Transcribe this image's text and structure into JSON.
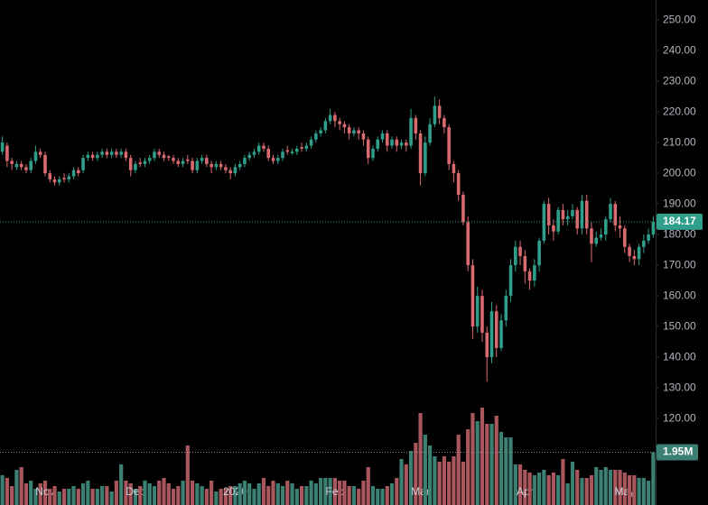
{
  "chart_data": {
    "type": "candlestick",
    "categories": [
      null,
      null,
      null,
      null,
      null,
      null,
      null,
      null,
      null,
      "Nov",
      null,
      null,
      null,
      null,
      null,
      null,
      null,
      null,
      null,
      null,
      null,
      null,
      null,
      null,
      null,
      null,
      null,
      null,
      "Dec",
      null,
      null,
      null,
      null,
      null,
      null,
      null,
      null,
      null,
      null,
      null,
      null,
      null,
      null,
      null,
      null,
      null,
      null,
      null,
      null,
      "2020",
      null,
      null,
      null,
      null,
      null,
      null,
      null,
      null,
      null,
      null,
      null,
      null,
      null,
      null,
      null,
      null,
      null,
      null,
      null,
      null,
      "Feb",
      null,
      null,
      null,
      null,
      null,
      null,
      null,
      null,
      null,
      null,
      null,
      null,
      null,
      null,
      null,
      null,
      null,
      "Mar",
      null,
      null,
      null,
      null,
      null,
      null,
      null,
      null,
      null,
      null,
      null,
      null,
      null,
      null,
      null,
      null,
      null,
      null,
      null,
      null,
      null,
      "Apr",
      null,
      null,
      null,
      null,
      null,
      null,
      null,
      null,
      null,
      null,
      null,
      null,
      null,
      null,
      null,
      null,
      null,
      null,
      null,
      null,
      "May",
      null,
      null,
      null,
      null,
      null,
      null
    ],
    "open": [
      207,
      209,
      204,
      202,
      203,
      202,
      201,
      204,
      207,
      206,
      200,
      198,
      197,
      198.5,
      198,
      199,
      201,
      201,
      205,
      206,
      205,
      206,
      207,
      206,
      207,
      206,
      207,
      205,
      201,
      203.5,
      203,
      204,
      205,
      207,
      206,
      205.5,
      205,
      204,
      203,
      204.5,
      204,
      201,
      204,
      205,
      203,
      202,
      203,
      202,
      201,
      200,
      202,
      203,
      205,
      206,
      207,
      209,
      208,
      205,
      204,
      205,
      207.5,
      206.5,
      207,
      208.5,
      208,
      209,
      211,
      213,
      214,
      217,
      219,
      217,
      216,
      215,
      213,
      214,
      213,
      211,
      205,
      208,
      211,
      213,
      209,
      211,
      209,
      210,
      209,
      218,
      213,
      200,
      210,
      216,
      222,
      218,
      215,
      203,
      200,
      193,
      184,
      170,
      150,
      160,
      148,
      140,
      155,
      143,
      152,
      160,
      170,
      176,
      173,
      168,
      165,
      170,
      178,
      190,
      183,
      181,
      188,
      185,
      186,
      188,
      182,
      191,
      182,
      177,
      179,
      180,
      185,
      190,
      183,
      182,
      176,
      173,
      172,
      176,
      178,
      180
    ],
    "high": [
      212,
      210,
      205,
      204,
      204,
      203,
      205,
      209,
      208,
      207,
      201,
      199,
      199,
      200,
      200,
      202,
      202,
      206,
      207,
      207,
      207,
      208,
      208,
      208,
      208,
      208,
      208,
      206,
      204,
      205,
      205,
      206,
      208,
      208,
      207,
      206,
      206,
      205,
      205,
      206,
      205,
      205,
      206,
      206,
      204,
      204,
      204,
      203,
      202,
      203,
      204,
      206,
      207,
      208,
      210,
      210,
      209,
      206,
      206,
      208,
      209,
      208,
      209,
      210,
      210,
      212,
      214,
      215,
      218,
      221,
      220,
      218,
      217,
      216,
      215,
      215,
      214,
      212,
      209,
      212,
      214,
      214,
      212,
      212,
      211,
      211,
      221,
      219,
      214,
      212,
      218,
      225,
      224,
      219,
      216,
      204,
      201,
      194,
      186,
      172,
      163,
      162,
      150,
      158,
      157,
      154,
      162,
      172,
      178,
      178,
      175,
      169,
      172,
      179,
      191,
      192,
      185,
      189,
      190,
      188,
      190,
      189,
      193,
      193,
      184,
      181,
      182,
      186,
      192,
      191,
      186,
      183,
      177,
      175,
      177,
      180,
      182,
      186
    ],
    "low": [
      206,
      202,
      201,
      201,
      201,
      200,
      200,
      203,
      205,
      199,
      197,
      196,
      196,
      197,
      197,
      198,
      199,
      200,
      204,
      204,
      204,
      205,
      205,
      205,
      205,
      205,
      204,
      199,
      200,
      202,
      202,
      203,
      204,
      205,
      204,
      204,
      203,
      202,
      202,
      203,
      200,
      200,
      203,
      202,
      200,
      201,
      201,
      200,
      198,
      199,
      201,
      202,
      204,
      205,
      206,
      207,
      204,
      203,
      203,
      204,
      206,
      206,
      206,
      207,
      207,
      208,
      210,
      212,
      213,
      216,
      215,
      214,
      213,
      211,
      212,
      211,
      209,
      203,
      204,
      207,
      210,
      207,
      208,
      207,
      208,
      207,
      208,
      211,
      196,
      199,
      209,
      215,
      216,
      213,
      201,
      197,
      191,
      183,
      168,
      146,
      148,
      145,
      132,
      138,
      140,
      142,
      150,
      158,
      168,
      170,
      164,
      162,
      163,
      168,
      177,
      180,
      178,
      180,
      183,
      183,
      185,
      180,
      180,
      180,
      171,
      176,
      178,
      178,
      184,
      181,
      179,
      174,
      171,
      170,
      170,
      174,
      177,
      179
    ],
    "close": [
      210,
      204,
      203,
      203,
      202,
      201,
      204,
      207,
      206,
      200,
      198,
      197,
      198,
      198,
      199,
      201,
      200,
      205,
      206,
      205,
      206,
      207,
      206,
      207,
      206,
      207,
      205,
      201,
      203,
      203,
      204,
      205,
      207,
      206,
      205,
      205,
      204,
      203,
      204,
      204,
      201,
      204,
      205,
      203,
      202,
      203,
      202,
      201,
      200,
      202,
      203,
      205,
      206,
      207,
      209,
      208,
      205,
      204,
      205,
      207,
      207,
      207,
      208,
      208,
      209,
      211,
      213,
      214,
      217,
      219,
      217,
      216,
      215,
      213,
      214,
      213,
      211,
      205,
      208,
      211,
      213,
      209,
      211,
      209,
      210,
      209,
      218,
      213,
      200,
      210,
      216,
      222,
      218,
      215,
      203,
      200,
      193,
      184,
      170,
      150,
      160,
      148,
      140,
      155,
      143,
      152,
      160,
      170,
      176,
      173,
      168,
      165,
      170,
      178,
      190,
      183,
      181,
      188,
      185,
      186,
      188,
      182,
      191,
      182,
      177,
      179,
      180,
      185,
      190,
      183,
      182,
      176,
      173,
      172,
      176,
      178,
      180,
      184.17
    ],
    "volume": [
      1.1,
      1.0,
      0.7,
      1.3,
      1.4,
      0.8,
      0.9,
      0.6,
      0.8,
      0.9,
      0.6,
      0.7,
      0.5,
      0.6,
      0.6,
      0.7,
      0.6,
      0.8,
      0.9,
      0.6,
      0.6,
      0.7,
      0.7,
      0.5,
      0.9,
      1.5,
      0.9,
      0.8,
      0.6,
      0.7,
      0.9,
      0.8,
      0.7,
      0.9,
      1.0,
      0.8,
      0.6,
      0.7,
      0.9,
      2.2,
      0.9,
      0.8,
      0.7,
      0.6,
      0.9,
      0.5,
      0.6,
      0.6,
      0.7,
      0.7,
      0.8,
      0.9,
      0.8,
      0.6,
      0.8,
      1.0,
      0.7,
      0.9,
      0.8,
      0.7,
      0.9,
      0.8,
      0.6,
      0.7,
      0.7,
      0.9,
      0.8,
      1.0,
      1.0,
      1.0,
      1.0,
      0.9,
      0.9,
      0.7,
      0.7,
      0.6,
      0.9,
      1.4,
      0.7,
      0.6,
      0.6,
      0.7,
      0.8,
      1.0,
      1.7,
      1.5,
      2.0,
      2.3,
      3.4,
      2.6,
      2.2,
      1.8,
      1.6,
      1.8,
      1.6,
      1.8,
      2.6,
      1.6,
      2.8,
      3.4,
      3.1,
      3.6,
      3.0,
      3.0,
      3.3,
      2.7,
      2.5,
      2.5,
      1.5,
      1.5,
      1.3,
      1.2,
      1.1,
      1.2,
      1.3,
      1.1,
      1.2,
      1.1,
      1.7,
      0.8,
      1.6,
      1.3,
      1.0,
      1.0,
      1.1,
      1.4,
      1.3,
      1.4,
      1.3,
      1.3,
      1.3,
      1.2,
      1.1,
      1.1,
      1.0,
      1.0,
      0.9,
      1.95
    ],
    "ylim": [
      91.8,
      256.5
    ],
    "yticks": [
      {
        "value": 120,
        "label": "120.00"
      },
      {
        "value": 130,
        "label": "130.00"
      },
      {
        "value": 140,
        "label": "140.00"
      },
      {
        "value": 150,
        "label": "150.00"
      },
      {
        "value": 160,
        "label": "160.00"
      },
      {
        "value": 170,
        "label": "170.00"
      },
      {
        "value": 180,
        "label": "180.00"
      },
      {
        "value": 190,
        "label": "190.00"
      },
      {
        "value": 200,
        "label": "200.00"
      },
      {
        "value": 210,
        "label": "210.00"
      },
      {
        "value": 220,
        "label": "220.00"
      },
      {
        "value": 230,
        "label": "230.00"
      },
      {
        "value": 240,
        "label": "240.00"
      },
      {
        "value": 250,
        "label": "250.00"
      }
    ],
    "volume_lim": [
      0,
      4.8
    ],
    "last_price": 184.17,
    "last_volume": {
      "value": 1.95,
      "label": "1.95M"
    },
    "up_color": "#2f9e8a",
    "down_color": "#d86a70",
    "volume_up_color": "#3c7f73",
    "volume_down_color": "#a9575c"
  }
}
